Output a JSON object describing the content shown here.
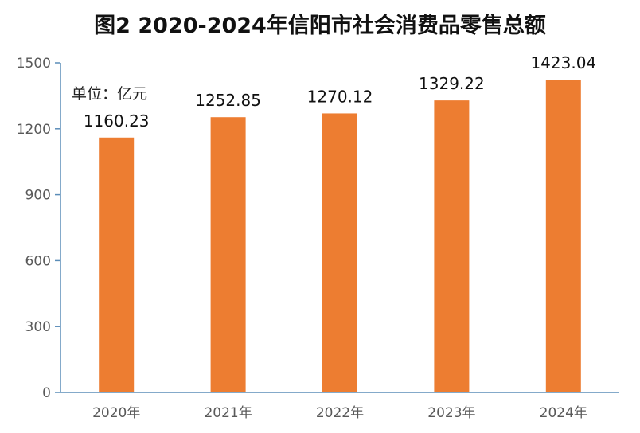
{
  "chart_data": {
    "type": "bar",
    "title": "图2  2020-2024年信阳市社会消费品零售总额",
    "unit_label": "单位：亿元",
    "categories": [
      "2020年",
      "2021年",
      "2022年",
      "2023年",
      "2024年"
    ],
    "values": [
      1160.23,
      1252.85,
      1270.12,
      1329.22,
      1423.04
    ],
    "value_labels": [
      "1160.23",
      "1252.85",
      "1270.12",
      "1329.22",
      "1423.04"
    ],
    "y_ticks": [
      0,
      300,
      600,
      900,
      1200,
      1500
    ],
    "y_tick_labels": [
      "0",
      "300",
      "600",
      "900",
      "1200",
      "1500"
    ],
    "ylim": [
      0,
      1500
    ],
    "xlabel": "",
    "ylabel": "",
    "grid": false,
    "bar_color": "#ED7D31",
    "axis_color": "#5B8DB8"
  }
}
